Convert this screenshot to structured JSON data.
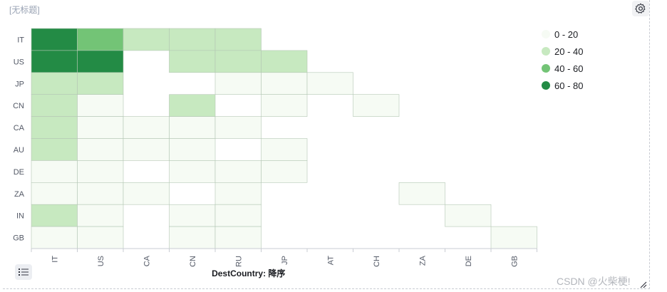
{
  "panel": {
    "title": "[无标题]"
  },
  "icons": {
    "settings": "gear-icon",
    "legend_toggle": "list-icon",
    "resize": "resize-handle-icon"
  },
  "watermark": "CSDN @火柴梗!",
  "chart_data": {
    "type": "heatmap",
    "x_categories": [
      "IT",
      "US",
      "CA",
      "CN",
      "RU",
      "JP",
      "AT",
      "CH",
      "ZA",
      "DE",
      "GB"
    ],
    "y_categories": [
      "IT",
      "US",
      "JP",
      "CN",
      "CA",
      "AU",
      "DE",
      "ZA",
      "IN",
      "GB"
    ],
    "xlabel": "DestCountry: 降序",
    "ylabel": "",
    "legend": {
      "position": "top-right",
      "ranges": [
        {
          "label": "0 - 20",
          "color": "#f6fbf4"
        },
        {
          "label": "20 - 40",
          "color": "#c7e9c0"
        },
        {
          "label": "40 - 60",
          "color": "#73c476"
        },
        {
          "label": "60 - 80",
          "color": "#238b45"
        }
      ]
    },
    "bins": [
      {
        "row": "IT",
        "col": "IT",
        "range": "60 - 80"
      },
      {
        "row": "IT",
        "col": "US",
        "range": "40 - 60"
      },
      {
        "row": "IT",
        "col": "CA",
        "range": "20 - 40"
      },
      {
        "row": "IT",
        "col": "CN",
        "range": "20 - 40"
      },
      {
        "row": "IT",
        "col": "RU",
        "range": "20 - 40"
      },
      {
        "row": "US",
        "col": "IT",
        "range": "60 - 80"
      },
      {
        "row": "US",
        "col": "US",
        "range": "60 - 80"
      },
      {
        "row": "US",
        "col": "CN",
        "range": "20 - 40"
      },
      {
        "row": "US",
        "col": "RU",
        "range": "20 - 40"
      },
      {
        "row": "US",
        "col": "JP",
        "range": "20 - 40"
      },
      {
        "row": "JP",
        "col": "IT",
        "range": "20 - 40"
      },
      {
        "row": "JP",
        "col": "US",
        "range": "20 - 40"
      },
      {
        "row": "JP",
        "col": "RU",
        "range": "0 - 20"
      },
      {
        "row": "JP",
        "col": "JP",
        "range": "0 - 20"
      },
      {
        "row": "JP",
        "col": "AT",
        "range": "0 - 20"
      },
      {
        "row": "CN",
        "col": "IT",
        "range": "20 - 40"
      },
      {
        "row": "CN",
        "col": "US",
        "range": "0 - 20"
      },
      {
        "row": "CN",
        "col": "CN",
        "range": "20 - 40"
      },
      {
        "row": "CN",
        "col": "JP",
        "range": "0 - 20"
      },
      {
        "row": "CN",
        "col": "CH",
        "range": "0 - 20"
      },
      {
        "row": "CA",
        "col": "IT",
        "range": "20 - 40"
      },
      {
        "row": "CA",
        "col": "US",
        "range": "0 - 20"
      },
      {
        "row": "CA",
        "col": "CA",
        "range": "0 - 20"
      },
      {
        "row": "CA",
        "col": "CN",
        "range": "0 - 20"
      },
      {
        "row": "CA",
        "col": "RU",
        "range": "0 - 20"
      },
      {
        "row": "AU",
        "col": "IT",
        "range": "20 - 40"
      },
      {
        "row": "AU",
        "col": "US",
        "range": "0 - 20"
      },
      {
        "row": "AU",
        "col": "CA",
        "range": "0 - 20"
      },
      {
        "row": "AU",
        "col": "CN",
        "range": "0 - 20"
      },
      {
        "row": "AU",
        "col": "JP",
        "range": "0 - 20"
      },
      {
        "row": "DE",
        "col": "IT",
        "range": "0 - 20"
      },
      {
        "row": "DE",
        "col": "US",
        "range": "0 - 20"
      },
      {
        "row": "DE",
        "col": "CN",
        "range": "0 - 20"
      },
      {
        "row": "DE",
        "col": "RU",
        "range": "0 - 20"
      },
      {
        "row": "DE",
        "col": "JP",
        "range": "0 - 20"
      },
      {
        "row": "ZA",
        "col": "IT",
        "range": "0 - 20"
      },
      {
        "row": "ZA",
        "col": "US",
        "range": "0 - 20"
      },
      {
        "row": "ZA",
        "col": "CA",
        "range": "0 - 20"
      },
      {
        "row": "ZA",
        "col": "RU",
        "range": "0 - 20"
      },
      {
        "row": "ZA",
        "col": "ZA",
        "range": "0 - 20"
      },
      {
        "row": "IN",
        "col": "IT",
        "range": "20 - 40"
      },
      {
        "row": "IN",
        "col": "US",
        "range": "0 - 20"
      },
      {
        "row": "IN",
        "col": "CN",
        "range": "0 - 20"
      },
      {
        "row": "IN",
        "col": "RU",
        "range": "0 - 20"
      },
      {
        "row": "IN",
        "col": "DE",
        "range": "0 - 20"
      },
      {
        "row": "GB",
        "col": "IT",
        "range": "0 - 20"
      },
      {
        "row": "GB",
        "col": "US",
        "range": "0 - 20"
      },
      {
        "row": "GB",
        "col": "CN",
        "range": "0 - 20"
      },
      {
        "row": "GB",
        "col": "RU",
        "range": "0 - 20"
      },
      {
        "row": "GB",
        "col": "GB",
        "range": "0 - 20"
      }
    ]
  }
}
